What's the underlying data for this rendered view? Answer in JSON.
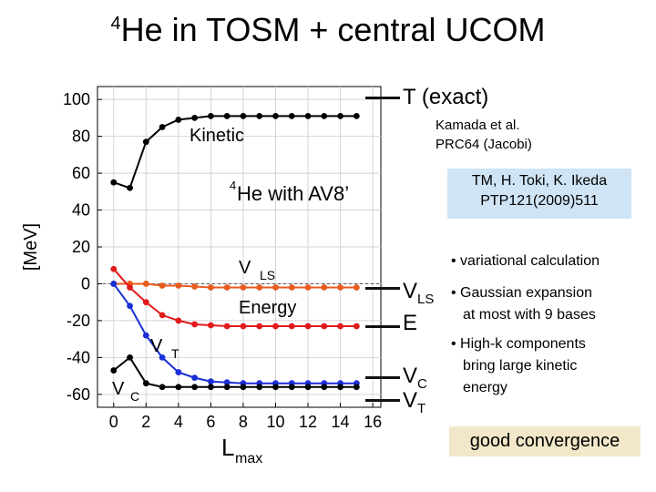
{
  "title": {
    "sup": "4",
    "text": "He in TOSM + central UCOM"
  },
  "markers": {
    "t": {
      "main": "T",
      "rest": " (exact)"
    },
    "vls": {
      "main": "V",
      "sub": "LS"
    },
    "e": {
      "main": "E"
    },
    "vc": {
      "main": "V",
      "sub": "C"
    },
    "vt": {
      "main": "V",
      "sub": "T"
    }
  },
  "reference": {
    "line1": "Kamada et al.",
    "line2": "PRC64  (Jacobi)"
  },
  "reference2": {
    "line1": "TM, H. Toki, K. Ikeda",
    "line2": "PTP121(2009)511"
  },
  "bullets": {
    "b1": "• variational calculation",
    "b2": "• Gaussian expansion",
    "b2b": "at most with 9 bases",
    "b3": "• High-k components",
    "b3b": "bring large kinetic",
    "b3c": "energy"
  },
  "conclusion": "good convergence",
  "chart_data": {
    "type": "line",
    "ylabel": "[MeV]",
    "xlabel": "L",
    "xlabel_sub": "max",
    "inset_label": {
      "sup": "4",
      "text": "He with AV8’"
    },
    "xlim": [
      -1,
      16.5
    ],
    "ylim": [
      -67,
      107
    ],
    "xticks": [
      0,
      2,
      4,
      6,
      8,
      10,
      12,
      14,
      16
    ],
    "yticks": [
      100,
      80,
      60,
      40,
      20,
      0,
      -20,
      -40,
      -60
    ],
    "grid": true,
    "reference_line": 0,
    "series": [
      {
        "name": "Kinetic",
        "name_sub": "",
        "color": "#000000",
        "x": [
          0,
          1,
          2,
          3,
          4,
          5,
          6,
          7,
          8,
          9,
          10,
          11,
          12,
          13,
          14,
          15
        ],
        "y": [
          55,
          52,
          77,
          85,
          89,
          90,
          91,
          91,
          91,
          91,
          91,
          91,
          91,
          91,
          91,
          91
        ]
      },
      {
        "name": "V",
        "name_sub": "LS",
        "color": "#e85a1e",
        "x": [
          0,
          1,
          2,
          3,
          4,
          5,
          6,
          7,
          8,
          9,
          10,
          11,
          12,
          13,
          14,
          15
        ],
        "y": [
          0,
          0,
          0,
          -1,
          -1,
          -1.5,
          -2,
          -2,
          -2,
          -2,
          -2,
          -2,
          -2,
          -2,
          -2,
          -2
        ]
      },
      {
        "name": "Energy",
        "name_sub": "",
        "color": "#e11b1b",
        "x": [
          0,
          1,
          2,
          3,
          4,
          5,
          6,
          7,
          8,
          9,
          10,
          11,
          12,
          13,
          14,
          15
        ],
        "y": [
          8,
          -2,
          -10,
          -17,
          -20,
          -22,
          -22.5,
          -23,
          -23,
          -23,
          -23,
          -23,
          -23,
          -23,
          -23,
          -23
        ]
      },
      {
        "name": "V",
        "name_sub": "T",
        "color": "#1a2fd6",
        "x": [
          0,
          1,
          2,
          3,
          4,
          5,
          6,
          7,
          8,
          9,
          10,
          11,
          12,
          13,
          14,
          15
        ],
        "y": [
          0,
          -12,
          -28,
          -40,
          -48,
          -51,
          -53,
          -53.5,
          -54,
          -54,
          -54,
          -54,
          -54,
          -54,
          -54,
          -54
        ]
      },
      {
        "name": "V",
        "name_sub": "C",
        "color": "#000000",
        "x": [
          0,
          1,
          2,
          3,
          4,
          5,
          6,
          7,
          8,
          9,
          10,
          11,
          12,
          13,
          14,
          15
        ],
        "y": [
          -47,
          -40,
          -54,
          -56,
          -56,
          -56,
          -56,
          -56,
          -56,
          -56,
          -56,
          -56,
          -56,
          -56,
          -56,
          -56
        ]
      }
    ]
  }
}
